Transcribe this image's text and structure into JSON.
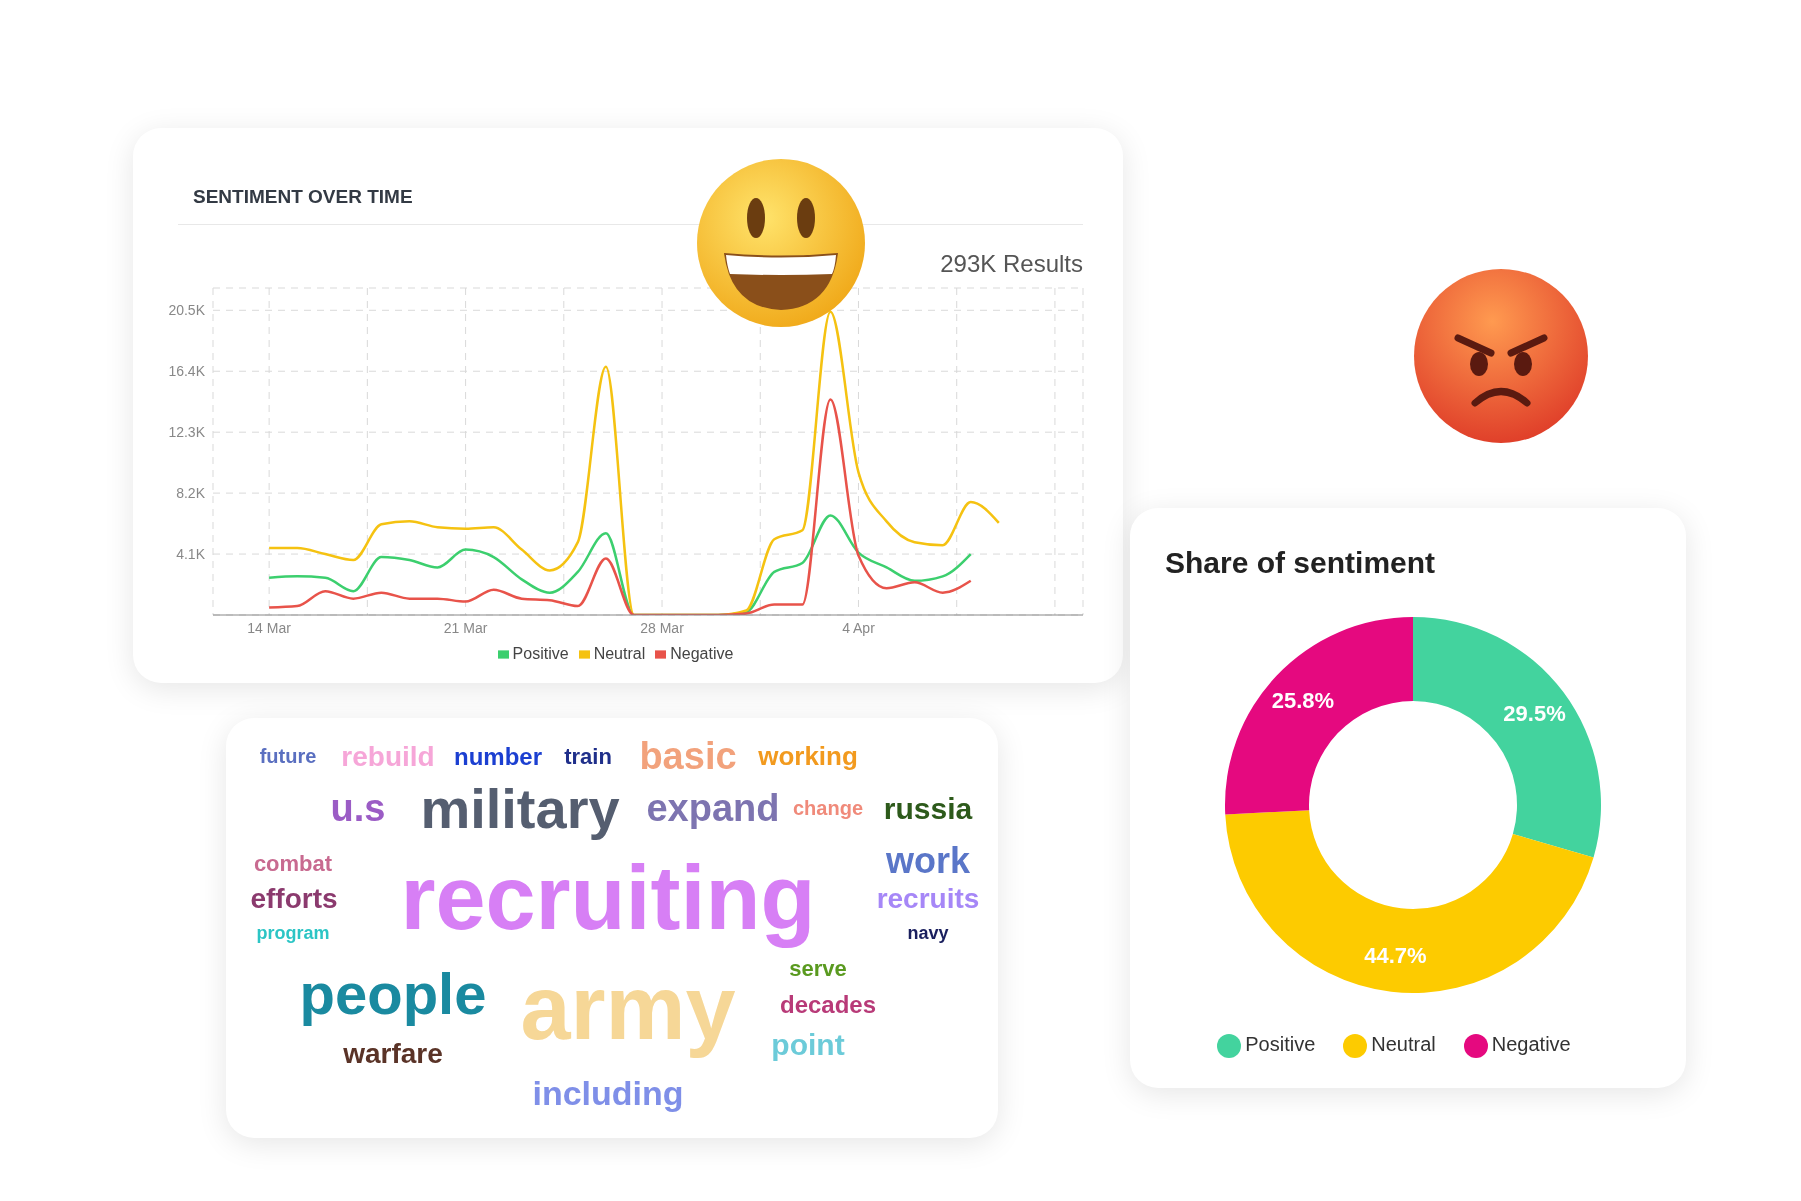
{
  "chart_data": [
    {
      "type": "line",
      "title": "SENTIMENT OVER TIME",
      "annotations": [
        "293K Results"
      ],
      "x": [
        "--03-14",
        "--03-15",
        "--03-16",
        "--03-17",
        "--03-18",
        "--03-19",
        "--03-20",
        "--03-21",
        "--03-22",
        "--03-23",
        "--03-24",
        "--03-25",
        "--03-26",
        "--03-27",
        "--03-28",
        "--03-29",
        "--03-30",
        "--03-31",
        "--04-01",
        "--04-02",
        "--04-03",
        "--04-04",
        "--04-05",
        "--04-06",
        "--04-07",
        "--04-08",
        "--04-09"
      ],
      "series": [
        {
          "name": "Positive",
          "color": "#3ccf6e",
          "values": [
            2500,
            2600,
            2500,
            1600,
            3900,
            3700,
            3200,
            4400,
            3900,
            2400,
            1500,
            2900,
            5500,
            0,
            0,
            0,
            0,
            200,
            2900,
            3500,
            6700,
            4200,
            3200,
            2300,
            2600,
            4100,
            null
          ]
        },
        {
          "name": "Neutral",
          "color": "#f5c211",
          "values": [
            4500,
            4500,
            4100,
            3700,
            6100,
            6300,
            5900,
            5800,
            5900,
            4400,
            3000,
            4900,
            16700,
            0,
            0,
            0,
            0,
            300,
            5100,
            5700,
            20400,
            9600,
            6300,
            4900,
            4700,
            7600,
            6200
          ]
        },
        {
          "name": "Negative",
          "color": "#e8534a",
          "values": [
            500,
            600,
            1600,
            1100,
            1500,
            1100,
            1100,
            900,
            1700,
            1100,
            1000,
            600,
            3800,
            0,
            0,
            0,
            0,
            100,
            700,
            700,
            14500,
            4000,
            1800,
            2200,
            1500,
            2300,
            null
          ]
        }
      ],
      "xlim": [
        "--03-12",
        "--04-12"
      ],
      "xticks": [
        {
          "value": "--03-14",
          "label": "14 Mar"
        },
        {
          "value": "--03-17T12:00",
          "label": null
        },
        {
          "value": "--03-21",
          "label": "21 Mar"
        },
        {
          "value": "--03-24T12:00",
          "label": null
        },
        {
          "value": "--03-28",
          "label": "28 Mar"
        },
        {
          "value": "--03-31T12:00",
          "label": null
        },
        {
          "value": "--04-04",
          "label": "4 Apr"
        },
        {
          "value": "--04-07T12:00",
          "label": null
        },
        {
          "value": "--04-11",
          "label": null
        }
      ],
      "ylim": [
        0,
        22000
      ],
      "yticks": [
        {
          "value": 4100,
          "label": "4.1K"
        },
        {
          "value": 8200,
          "label": "8.2K"
        },
        {
          "value": 12300,
          "label": "12.3K"
        },
        {
          "value": 16400,
          "label": "16.4K"
        },
        {
          "value": 20500,
          "label": "20.5K"
        }
      ],
      "grid": true,
      "legend": "bottom"
    },
    {
      "type": "donut",
      "title": "Share of sentiment",
      "categories": [
        "Positive",
        "Neutral",
        "Negative"
      ],
      "values": [
        29.5,
        44.7,
        25.8
      ],
      "colors": [
        "#43d39e",
        "#fdcb00",
        "#e5097f"
      ],
      "value_labels": [
        "29.5%",
        "44.7%",
        "25.8%"
      ],
      "legend": "bottom"
    },
    {
      "type": "other",
      "annotations": [
        "train",
        "rebuild",
        "number",
        "basic",
        "working",
        "future",
        "change",
        "military",
        "expand",
        "u.s",
        "work",
        "russia",
        "combat",
        "efforts",
        "recruiting",
        "recruits",
        "program",
        "navy",
        "army",
        "people",
        "serve",
        "decades",
        "warfare",
        "point",
        "including"
      ],
      "colors": [
        "#1f2f8a",
        "#f6a6d8",
        "#1b3fd1",
        "#f2a27c",
        "#f29a1e",
        "#5a6fc0",
        "#f08a7a",
        "#555e70",
        "#7d74b0",
        "#9b5cc5",
        "#5a76c8",
        "#2d5a1b",
        "#c86a90",
        "#8b3a6e",
        "#d77ff5",
        "#a687f7",
        "#2cc5c5",
        "#1a1f5e",
        "#f6d797",
        "#1a8aa0",
        "#5a9a20",
        "#b83a78",
        "#5a3327",
        "#6ccbd9",
        "#7f8fe8"
      ]
    }
  ]
}
